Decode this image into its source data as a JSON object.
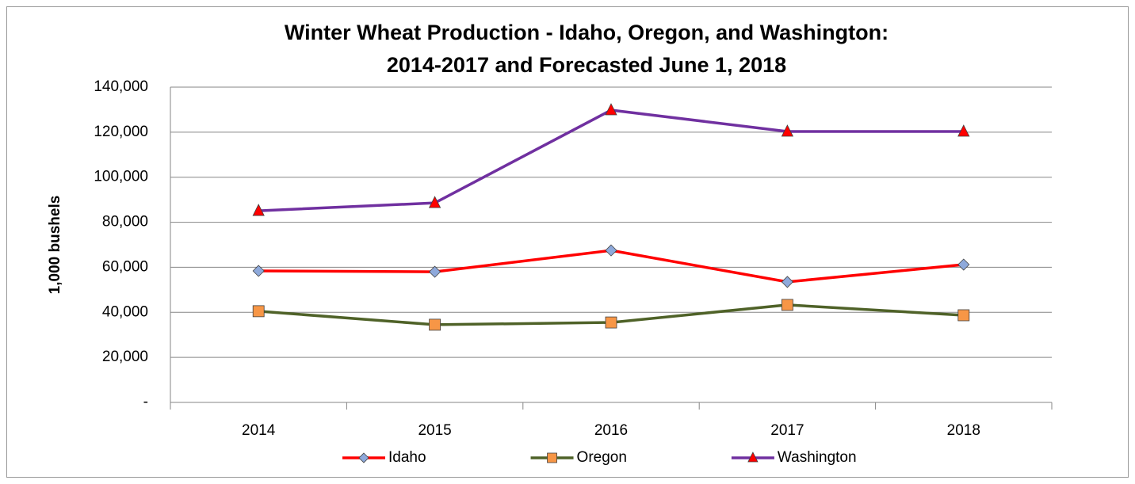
{
  "chart_data": {
    "type": "line",
    "title": [
      "Winter Wheat Production - Idaho, Oregon, and Washington:",
      "2014-2017 and Forecasted June 1, 2018"
    ],
    "y_label": "1,000 bushels",
    "categories": [
      "2014",
      "2015",
      "2016",
      "2017",
      "2018"
    ],
    "series": [
      {
        "name": "Idaho",
        "color": "#ff0000",
        "marker": "diamond",
        "marker_color": "#8ea9db",
        "values": [
          58400,
          58000,
          67500,
          53500,
          61200
        ]
      },
      {
        "name": "Oregon",
        "color": "#4f6228",
        "marker": "square",
        "marker_color": "#f79646",
        "values": [
          40500,
          34500,
          35500,
          43300,
          38700
        ]
      },
      {
        "name": "Washington",
        "color": "#7030a0",
        "marker": "triangle",
        "marker_color": "#ff0000",
        "values": [
          85100,
          88600,
          129800,
          120300,
          120300
        ]
      }
    ],
    "ylim": [
      0,
      140000
    ],
    "yticks": [
      {
        "value": 0,
        "label": "-"
      },
      {
        "value": 20000,
        "label": "20,000"
      },
      {
        "value": 40000,
        "label": "40,000"
      },
      {
        "value": 60000,
        "label": "60,000"
      },
      {
        "value": 80000,
        "label": "80,000"
      },
      {
        "value": 100000,
        "label": "100,000"
      },
      {
        "value": 120000,
        "label": "120,000"
      },
      {
        "value": 140000,
        "label": "140,000"
      }
    ],
    "grid": true,
    "legend": "bottom"
  }
}
